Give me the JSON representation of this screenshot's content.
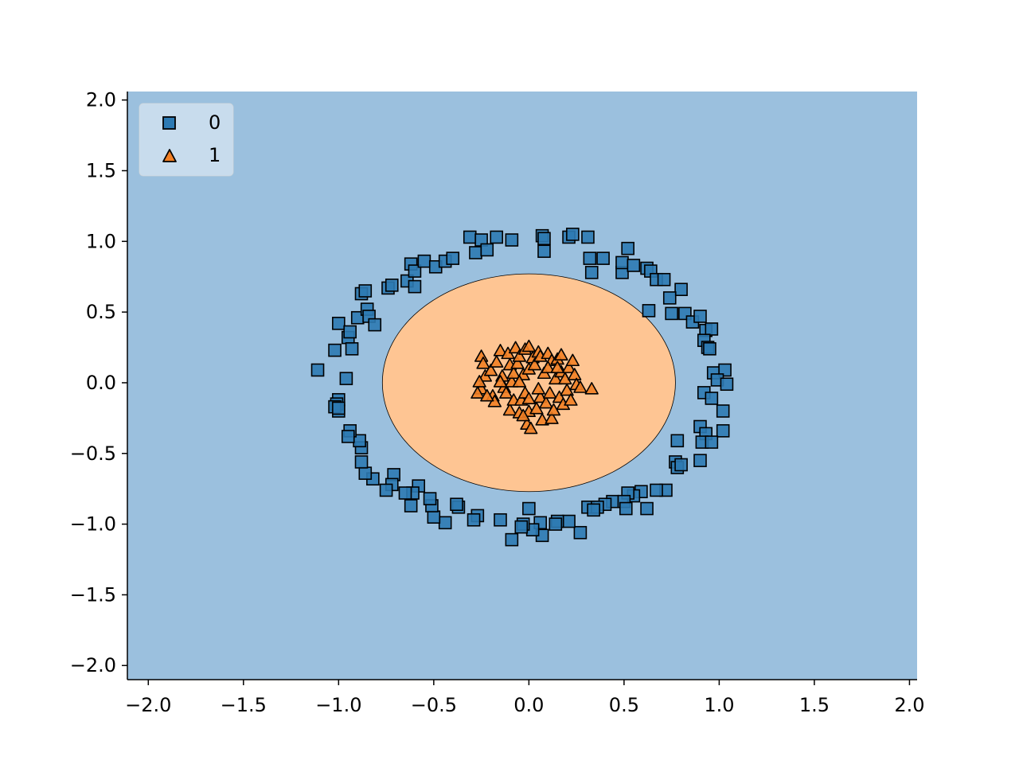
{
  "chart_data": {
    "type": "scatter",
    "title": "",
    "xlabel": "",
    "ylabel": "",
    "xlim": [
      -2.11,
      2.04
    ],
    "ylim": [
      -2.1,
      2.06
    ],
    "x_ticks": [
      -2.0,
      -1.5,
      -1.0,
      -0.5,
      0.0,
      0.5,
      1.0,
      1.5,
      2.0
    ],
    "y_ticks": [
      -2.0,
      -1.5,
      -1.0,
      -0.5,
      0.0,
      0.5,
      1.0,
      1.5,
      2.0
    ],
    "x_tick_labels": [
      "−2.0",
      "−1.5",
      "−1.0",
      "−0.5",
      "0.0",
      "0.5",
      "1.0",
      "1.5",
      "2.0"
    ],
    "y_tick_labels": [
      "−2.0",
      "−1.5",
      "−1.0",
      "−0.5",
      "0.0",
      "0.5",
      "1.0",
      "1.5",
      "2.0"
    ],
    "grid": false,
    "legend_position": "top-left",
    "decision_regions": {
      "background_class": "0",
      "inner_class": "1",
      "inner_boundary": {
        "shape": "ellipse",
        "center": [
          0.0,
          0.0
        ],
        "radius_x": 0.77,
        "radius_y": 0.77
      },
      "colors": {
        "0": "#9bc0de",
        "1": "#fec593"
      }
    },
    "series": [
      {
        "name": "0",
        "marker": "square",
        "color": "#2d7ab3",
        "points": [
          [
            -1.11,
            0.09
          ],
          [
            -1.02,
            0.23
          ],
          [
            -1.0,
            0.42
          ],
          [
            -0.96,
            0.03
          ],
          [
            -0.95,
            0.32
          ],
          [
            -0.94,
            0.36
          ],
          [
            -0.93,
            0.24
          ],
          [
            -0.9,
            0.46
          ],
          [
            -0.88,
            0.63
          ],
          [
            -0.86,
            0.65
          ],
          [
            -0.85,
            0.52
          ],
          [
            -0.84,
            0.47
          ],
          [
            -0.81,
            0.41
          ],
          [
            -0.74,
            0.67
          ],
          [
            -0.72,
            0.69
          ],
          [
            -0.64,
            0.72
          ],
          [
            -0.62,
            0.84
          ],
          [
            -0.6,
            0.79
          ],
          [
            -0.6,
            0.68
          ],
          [
            -0.55,
            0.86
          ],
          [
            -0.49,
            0.82
          ],
          [
            -0.44,
            0.86
          ],
          [
            -0.4,
            0.88
          ],
          [
            -0.31,
            1.03
          ],
          [
            -0.28,
            0.92
          ],
          [
            -0.25,
            1.01
          ],
          [
            -0.22,
            0.94
          ],
          [
            -0.17,
            1.03
          ],
          [
            -0.09,
            1.01
          ],
          [
            0.07,
            1.04
          ],
          [
            0.08,
            1.02
          ],
          [
            0.08,
            0.93
          ],
          [
            0.21,
            1.03
          ],
          [
            0.23,
            1.05
          ],
          [
            0.31,
            1.03
          ],
          [
            0.32,
            0.88
          ],
          [
            0.33,
            0.78
          ],
          [
            0.39,
            0.88
          ],
          [
            0.49,
            0.78
          ],
          [
            0.49,
            0.85
          ],
          [
            0.52,
            0.95
          ],
          [
            0.55,
            0.83
          ],
          [
            0.62,
            0.81
          ],
          [
            0.64,
            0.79
          ],
          [
            0.67,
            0.73
          ],
          [
            0.71,
            0.73
          ],
          [
            0.8,
            0.66
          ],
          [
            0.74,
            0.6
          ],
          [
            0.63,
            0.51
          ],
          [
            0.75,
            0.49
          ],
          [
            0.82,
            0.49
          ],
          [
            0.86,
            0.43
          ],
          [
            0.9,
            0.47
          ],
          [
            0.93,
            0.37
          ],
          [
            0.96,
            0.38
          ],
          [
            0.92,
            0.3
          ],
          [
            0.94,
            0.25
          ],
          [
            0.95,
            0.24
          ],
          [
            0.97,
            0.07
          ],
          [
            1.03,
            0.09
          ],
          [
            0.99,
            0.02
          ],
          [
            1.04,
            -0.01
          ],
          [
            0.92,
            -0.07
          ],
          [
            0.96,
            -0.11
          ],
          [
            1.02,
            -0.2
          ],
          [
            0.9,
            -0.31
          ],
          [
            0.93,
            -0.36
          ],
          [
            1.02,
            -0.34
          ],
          [
            0.91,
            -0.42
          ],
          [
            0.96,
            -0.42
          ],
          [
            0.78,
            -0.41
          ],
          [
            0.77,
            -0.56
          ],
          [
            0.78,
            -0.6
          ],
          [
            0.8,
            -0.58
          ],
          [
            0.9,
            -0.55
          ],
          [
            0.72,
            -0.76
          ],
          [
            0.67,
            -0.76
          ],
          [
            0.59,
            -0.77
          ],
          [
            0.55,
            -0.8
          ],
          [
            0.52,
            -0.78
          ],
          [
            0.44,
            -0.84
          ],
          [
            0.5,
            -0.84
          ],
          [
            0.4,
            -0.86
          ],
          [
            0.31,
            -0.88
          ],
          [
            0.36,
            -0.88
          ],
          [
            0.34,
            -0.9
          ],
          [
            0.51,
            -0.89
          ],
          [
            0.62,
            -0.89
          ],
          [
            0.27,
            -1.06
          ],
          [
            0.21,
            -0.98
          ],
          [
            0.15,
            -0.98
          ],
          [
            0.14,
            -1.0
          ],
          [
            0.07,
            -1.08
          ],
          [
            0.06,
            -0.99
          ],
          [
            0.02,
            -1.04
          ],
          [
            0.0,
            -0.89
          ],
          [
            -0.03,
            -1.0
          ],
          [
            -0.04,
            -1.02
          ],
          [
            -0.09,
            -1.11
          ],
          [
            -0.15,
            -0.97
          ],
          [
            -0.27,
            -0.94
          ],
          [
            -0.29,
            -0.97
          ],
          [
            -0.37,
            -0.88
          ],
          [
            -0.38,
            -0.86
          ],
          [
            -0.44,
            -0.99
          ],
          [
            -0.5,
            -0.95
          ],
          [
            -0.51,
            -0.87
          ],
          [
            -0.52,
            -0.82
          ],
          [
            -0.58,
            -0.73
          ],
          [
            -0.61,
            -0.78
          ],
          [
            -0.62,
            -0.87
          ],
          [
            -0.65,
            -0.78
          ],
          [
            -0.71,
            -0.65
          ],
          [
            -0.72,
            -0.72
          ],
          [
            -0.75,
            -0.76
          ],
          [
            -0.82,
            -0.68
          ],
          [
            -0.86,
            -0.64
          ],
          [
            -0.88,
            -0.56
          ],
          [
            -0.88,
            -0.46
          ],
          [
            -0.89,
            -0.41
          ],
          [
            -0.94,
            -0.34
          ],
          [
            -0.95,
            -0.38
          ],
          [
            -1.0,
            -0.12
          ],
          [
            -1.0,
            -0.2
          ],
          [
            -1.01,
            -0.15
          ],
          [
            -1.02,
            -0.17
          ],
          [
            -1.0,
            -0.18
          ]
        ]
      },
      {
        "name": "1",
        "marker": "triangle",
        "color": "#f28025",
        "points": [
          [
            -0.25,
            0.18
          ],
          [
            -0.24,
            0.13
          ],
          [
            -0.23,
            0.04
          ],
          [
            -0.25,
            -0.05
          ],
          [
            -0.27,
            -0.08
          ],
          [
            -0.26,
            0.0
          ],
          [
            -0.2,
            0.08
          ],
          [
            -0.19,
            -0.1
          ],
          [
            -0.18,
            -0.14
          ],
          [
            -0.17,
            0.14
          ],
          [
            -0.15,
            0.22
          ],
          [
            -0.14,
            0.04
          ],
          [
            -0.13,
            -0.04
          ],
          [
            -0.12,
            -0.08
          ],
          [
            -0.11,
            0.2
          ],
          [
            -0.1,
            0.12
          ],
          [
            -0.1,
            -0.2
          ],
          [
            -0.09,
            0.0
          ],
          [
            -0.08,
            0.06
          ],
          [
            -0.08,
            -0.13
          ],
          [
            -0.07,
            0.24
          ],
          [
            -0.06,
            0.13
          ],
          [
            -0.05,
            -0.22
          ],
          [
            -0.05,
            0.18
          ],
          [
            -0.04,
            -0.13
          ],
          [
            -0.03,
            0.05
          ],
          [
            -0.02,
            0.23
          ],
          [
            -0.02,
            -0.08
          ],
          [
            -0.01,
            -0.3
          ],
          [
            0.0,
            0.25
          ],
          [
            0.0,
            -0.21
          ],
          [
            0.0,
            0.09
          ],
          [
            0.01,
            -0.33
          ],
          [
            0.02,
            0.17
          ],
          [
            0.03,
            0.12
          ],
          [
            0.04,
            -0.19
          ],
          [
            0.05,
            0.21
          ],
          [
            0.06,
            -0.11
          ],
          [
            0.06,
            0.18
          ],
          [
            0.07,
            -0.27
          ],
          [
            0.08,
            0.06
          ],
          [
            0.09,
            -0.15
          ],
          [
            0.1,
            0.2
          ],
          [
            0.11,
            -0.08
          ],
          [
            0.12,
            0.15
          ],
          [
            0.12,
            -0.26
          ],
          [
            0.13,
            -0.2
          ],
          [
            0.14,
            0.02
          ],
          [
            0.15,
            0.16
          ],
          [
            0.16,
            -0.11
          ],
          [
            0.17,
            0.07
          ],
          [
            0.17,
            0.19
          ],
          [
            0.18,
            -0.16
          ],
          [
            0.19,
            0.02
          ],
          [
            0.2,
            -0.06
          ],
          [
            0.21,
            0.1
          ],
          [
            0.22,
            -0.13
          ],
          [
            0.23,
            0.15
          ],
          [
            0.24,
            0.05
          ],
          [
            0.25,
            -0.02
          ],
          [
            0.27,
            -0.04
          ],
          [
            0.33,
            -0.05
          ],
          [
            -0.22,
            -0.1
          ],
          [
            -0.03,
            -0.24
          ],
          [
            0.1,
            0.1
          ],
          [
            -0.15,
            0.0
          ],
          [
            -0.05,
            0.0
          ],
          [
            0.0,
            -0.12
          ],
          [
            0.05,
            -0.05
          ],
          [
            0.15,
            0.1
          ]
        ]
      }
    ]
  }
}
